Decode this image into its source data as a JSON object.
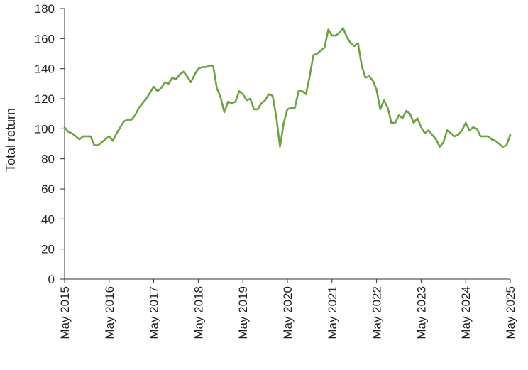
{
  "chart_data": {
    "type": "line",
    "title": "",
    "ylabel": "Total return",
    "xlabel": "",
    "ylim": [
      0,
      180
    ],
    "yticks": [
      0,
      20,
      40,
      60,
      80,
      100,
      120,
      140,
      160,
      180
    ],
    "ytick_labels": [
      "0",
      "20",
      "40",
      "60",
      "80",
      "100",
      "120",
      "140",
      "160",
      "180"
    ],
    "xlim": [
      "2015-05",
      "2025-05"
    ],
    "xtick_labels": [
      "May 2015",
      "May 2016",
      "May 2017",
      "May 2018",
      "May 2019",
      "May 2020",
      "May 2021",
      "May 2022",
      "May 2023",
      "May 2024",
      "May 2025"
    ],
    "grid": false,
    "legend": false,
    "series_color": "#6aa33f",
    "series": [
      {
        "x": [
          "2015-05",
          "2015-06",
          "2015-07",
          "2015-08",
          "2015-09",
          "2015-10",
          "2015-11",
          "2015-12",
          "2016-01",
          "2016-02",
          "2016-03",
          "2016-04",
          "2016-05",
          "2016-06",
          "2016-07",
          "2016-08",
          "2016-09",
          "2016-10",
          "2016-11",
          "2016-12",
          "2017-01",
          "2017-02",
          "2017-03",
          "2017-04",
          "2017-05",
          "2017-06",
          "2017-07",
          "2017-08",
          "2017-09",
          "2017-10",
          "2017-11",
          "2017-12",
          "2018-01",
          "2018-02",
          "2018-03",
          "2018-04",
          "2018-05",
          "2018-06",
          "2018-07",
          "2018-08",
          "2018-09",
          "2018-10",
          "2018-11",
          "2018-12",
          "2019-01",
          "2019-02",
          "2019-03",
          "2019-04",
          "2019-05",
          "2019-06",
          "2019-07",
          "2019-08",
          "2019-09",
          "2019-10",
          "2019-11",
          "2019-12",
          "2020-01",
          "2020-02",
          "2020-03",
          "2020-04",
          "2020-05",
          "2020-06",
          "2020-07",
          "2020-08",
          "2020-09",
          "2020-10",
          "2020-11",
          "2020-12",
          "2021-01",
          "2021-02",
          "2021-03",
          "2021-04",
          "2021-05",
          "2021-06",
          "2021-07",
          "2021-08",
          "2021-09",
          "2021-10",
          "2021-11",
          "2021-12",
          "2022-01",
          "2022-02",
          "2022-03",
          "2022-04",
          "2022-05",
          "2022-06",
          "2022-07",
          "2022-08",
          "2022-09",
          "2022-10",
          "2022-11",
          "2022-12",
          "2023-01",
          "2023-02",
          "2023-03",
          "2023-04",
          "2023-05",
          "2023-06",
          "2023-07",
          "2023-08",
          "2023-09",
          "2023-10",
          "2023-11",
          "2023-12",
          "2024-01",
          "2024-02",
          "2024-03",
          "2024-04",
          "2024-05",
          "2024-06",
          "2024-07",
          "2024-08",
          "2024-09",
          "2024-10",
          "2024-11",
          "2024-12",
          "2025-01",
          "2025-02",
          "2025-03",
          "2025-04",
          "2025-05"
        ],
        "values": [
          101,
          98,
          97,
          95,
          93,
          95,
          95,
          95,
          89,
          89,
          91,
          93,
          95,
          92,
          97,
          101,
          105,
          106,
          106,
          109,
          114,
          117,
          120,
          124,
          128,
          125,
          127,
          131,
          130,
          134,
          133,
          136,
          138,
          135,
          131,
          136,
          140,
          141,
          141,
          142,
          142,
          127,
          121,
          111,
          118,
          117,
          118,
          125,
          123,
          119,
          120,
          113,
          113,
          117,
          119,
          123,
          122,
          108,
          88,
          104,
          113,
          114,
          114,
          125,
          125,
          123,
          135,
          149,
          150,
          152,
          154,
          166,
          162,
          162,
          164,
          167,
          161,
          157,
          155,
          157,
          142,
          134,
          135,
          132,
          126,
          113,
          119,
          114,
          104,
          104,
          109,
          107,
          112,
          110,
          104,
          107,
          101,
          97,
          99,
          96,
          93,
          88,
          91,
          99,
          97,
          95,
          96,
          99,
          104,
          99,
          101,
          100,
          95,
          95,
          95,
          93,
          92,
          90,
          88,
          89,
          96
        ]
      }
    ]
  }
}
